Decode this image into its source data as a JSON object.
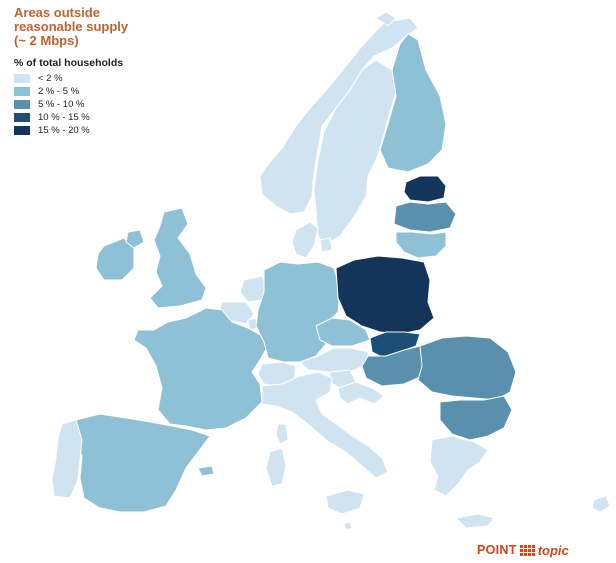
{
  "title": "Areas outside\nreasonable supply\n(~ 2 Mbps)",
  "legend": {
    "title": "% of total households",
    "items": [
      {
        "label": "< 2 %",
        "color": "#cfe3f1"
      },
      {
        "label": "2 % - 5 %",
        "color": "#8fc1d6"
      },
      {
        "label": "5 % - 10 %",
        "color": "#5b8fae"
      },
      {
        "label": "10 % - 15 %",
        "color": "#1d4e77"
      },
      {
        "label": "15 % - 20 %",
        "color": "#14355b"
      }
    ]
  },
  "brand": {
    "point": "POINT",
    "topic": "topic"
  },
  "countries": [
    {
      "name": "Norway",
      "band": 0
    },
    {
      "name": "Sweden",
      "band": 0
    },
    {
      "name": "Finland",
      "band": 1
    },
    {
      "name": "Estonia",
      "band": 4
    },
    {
      "name": "Latvia",
      "band": 2
    },
    {
      "name": "Lithuania",
      "band": 1
    },
    {
      "name": "Denmark",
      "band": 0
    },
    {
      "name": "Ireland",
      "band": 1
    },
    {
      "name": "United Kingdom",
      "band": 1
    },
    {
      "name": "Netherlands",
      "band": 0
    },
    {
      "name": "Belgium",
      "band": 0
    },
    {
      "name": "Luxembourg",
      "band": 0
    },
    {
      "name": "France",
      "band": 1
    },
    {
      "name": "Germany",
      "band": 1
    },
    {
      "name": "Poland",
      "band": 4
    },
    {
      "name": "Czech Republic",
      "band": 1
    },
    {
      "name": "Slovakia",
      "band": 3
    },
    {
      "name": "Austria",
      "band": 0
    },
    {
      "name": "Switzerland",
      "band": 0
    },
    {
      "name": "Hungary",
      "band": 2
    },
    {
      "name": "Slovenia",
      "band": 0
    },
    {
      "name": "Croatia",
      "band": 0
    },
    {
      "name": "Romania",
      "band": 2
    },
    {
      "name": "Bulgaria",
      "band": 2
    },
    {
      "name": "Italy",
      "band": 0
    },
    {
      "name": "Sardinia",
      "band": 0
    },
    {
      "name": "Corsica",
      "band": 0
    },
    {
      "name": "Sicily",
      "band": 0
    },
    {
      "name": "Spain",
      "band": 1
    },
    {
      "name": "Portugal",
      "band": 0
    },
    {
      "name": "Greece",
      "band": 0
    },
    {
      "name": "Malta",
      "band": 0
    },
    {
      "name": "Cyprus",
      "band": 0
    },
    {
      "name": "Balearic Islands",
      "band": 1
    },
    {
      "name": "Crete",
      "band": 0
    },
    {
      "name": "Northern Ireland",
      "band": 1
    },
    {
      "name": "Scandinavia North",
      "band": 0
    }
  ]
}
